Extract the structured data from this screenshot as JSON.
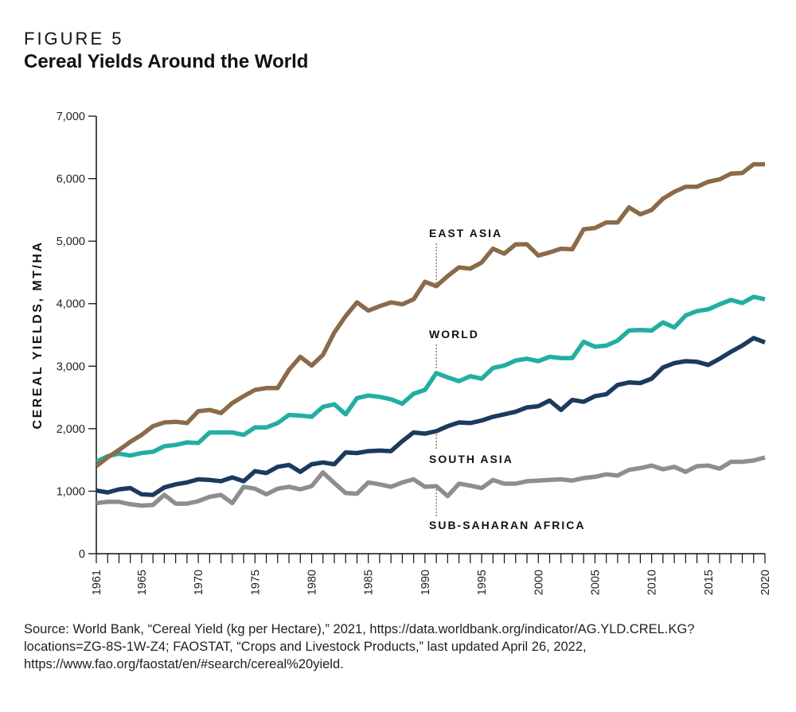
{
  "header": {
    "figure_label": "FIGURE 5",
    "title": "Cereal Yields Around the World"
  },
  "source_note": "Source: World Bank, “Cereal Yield (kg per Hectare),” 2021, https://data.worldbank.org/indicator/AG.YLD.CREL.KG?locations=ZG-8S-1W-Z4; FAOSTAT, “Crops and Livestock Products,” last updated April 26, 2022, https://www.fao.org/faostat/en/#search/cereal%20yield.",
  "chart_data": {
    "type": "line",
    "title": "Cereal Yields Around the World",
    "ylabel": "CEREAL YIELDS, MT/HA",
    "xlabel": "",
    "xlim": [
      1961,
      2020
    ],
    "ylim": [
      0,
      7000
    ],
    "x_tick_labels": [
      "1961",
      "1965",
      "1970",
      "1975",
      "1980",
      "1985",
      "1990",
      "1995",
      "2000",
      "2005",
      "2010",
      "2015",
      "2020"
    ],
    "y_tick_labels": [
      "0",
      "1,000",
      "2,000",
      "3,000",
      "4,000",
      "5,000",
      "6,000",
      "7,000"
    ],
    "grid": false,
    "legend": "inline labels",
    "x": [
      1961,
      1962,
      1963,
      1964,
      1965,
      1966,
      1967,
      1968,
      1969,
      1970,
      1971,
      1972,
      1973,
      1974,
      1975,
      1976,
      1977,
      1978,
      1979,
      1980,
      1981,
      1982,
      1983,
      1984,
      1985,
      1986,
      1987,
      1988,
      1989,
      1990,
      1991,
      1992,
      1993,
      1994,
      1995,
      1996,
      1997,
      1998,
      1999,
      2000,
      2001,
      2002,
      2003,
      2004,
      2005,
      2006,
      2007,
      2008,
      2009,
      2010,
      2011,
      2012,
      2013,
      2014,
      2015,
      2016,
      2017,
      2018,
      2019,
      2020
    ],
    "series": [
      {
        "name": "EAST ASIA",
        "color": "#8b6a4a",
        "values": [
          1400,
          1540,
          1660,
          1790,
          1900,
          2040,
          2100,
          2110,
          2090,
          2280,
          2300,
          2250,
          2410,
          2520,
          2620,
          2650,
          2650,
          2940,
          3150,
          3010,
          3180,
          3540,
          3800,
          4020,
          3890,
          3960,
          4020,
          3990,
          4070,
          4350,
          4280,
          4440,
          4580,
          4560,
          4660,
          4880,
          4800,
          4950,
          4950,
          4770,
          4820,
          4880,
          4870,
          5190,
          5210,
          5300,
          5300,
          5540,
          5430,
          5500,
          5680,
          5790,
          5870,
          5870,
          5950,
          5990,
          6080,
          6090,
          6230,
          6230
        ]
      },
      {
        "name": "WORLD",
        "color": "#23aea2",
        "values": [
          1470,
          1560,
          1600,
          1570,
          1610,
          1630,
          1720,
          1740,
          1780,
          1770,
          1940,
          1940,
          1940,
          1900,
          2020,
          2020,
          2090,
          2220,
          2210,
          2190,
          2350,
          2390,
          2230,
          2490,
          2530,
          2510,
          2470,
          2400,
          2560,
          2620,
          2890,
          2820,
          2760,
          2840,
          2800,
          2970,
          3010,
          3090,
          3120,
          3080,
          3150,
          3130,
          3130,
          3390,
          3310,
          3330,
          3410,
          3570,
          3580,
          3570,
          3700,
          3620,
          3810,
          3880,
          3910,
          3990,
          4060,
          4010,
          4110,
          4070
        ]
      },
      {
        "name": "SOUTH ASIA",
        "color": "#1b3a5e",
        "values": [
          1010,
          980,
          1030,
          1050,
          950,
          940,
          1060,
          1110,
          1140,
          1190,
          1180,
          1160,
          1220,
          1160,
          1320,
          1290,
          1390,
          1420,
          1310,
          1430,
          1460,
          1430,
          1620,
          1610,
          1640,
          1650,
          1640,
          1800,
          1940,
          1920,
          1960,
          2040,
          2100,
          2090,
          2130,
          2190,
          2230,
          2270,
          2340,
          2360,
          2450,
          2300,
          2460,
          2430,
          2520,
          2550,
          2700,
          2740,
          2730,
          2800,
          2980,
          3050,
          3080,
          3070,
          3020,
          3120,
          3230,
          3330,
          3450,
          3380
        ]
      },
      {
        "name": "SUB-SAHARAN AFRICA",
        "color": "#8e8e8e",
        "values": [
          810,
          830,
          830,
          790,
          770,
          780,
          940,
          800,
          800,
          840,
          910,
          940,
          810,
          1070,
          1040,
          950,
          1040,
          1070,
          1030,
          1080,
          1300,
          1130,
          970,
          960,
          1140,
          1110,
          1070,
          1140,
          1190,
          1070,
          1080,
          920,
          1120,
          1090,
          1050,
          1180,
          1120,
          1120,
          1160,
          1170,
          1180,
          1190,
          1170,
          1210,
          1230,
          1270,
          1250,
          1340,
          1370,
          1410,
          1350,
          1390,
          1310,
          1400,
          1410,
          1360,
          1470,
          1470,
          1490,
          1540
        ]
      }
    ]
  }
}
